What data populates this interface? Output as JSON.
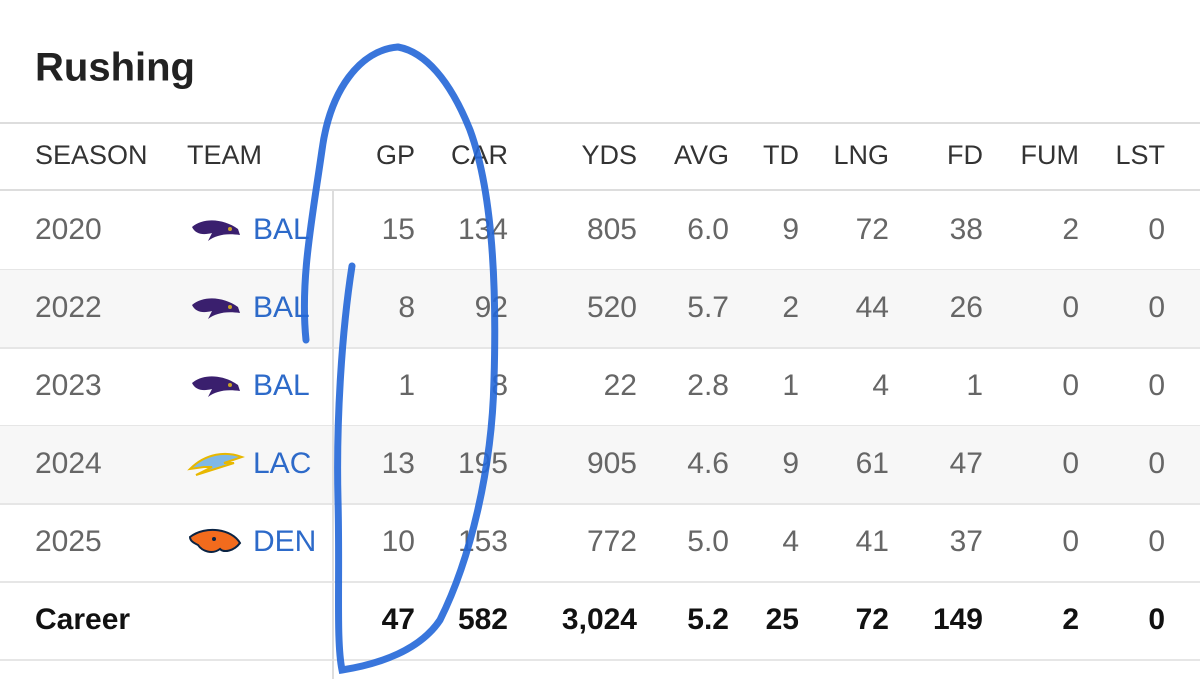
{
  "title": "Rushing",
  "columns": [
    "SEASON",
    "TEAM",
    "GP",
    "CAR",
    "YDS",
    "AVG",
    "TD",
    "LNG",
    "FD",
    "FUM",
    "LST"
  ],
  "rows": [
    {
      "season": "2020",
      "team": "BAL",
      "stats": [
        "15",
        "134",
        "805",
        "6.0",
        "9",
        "72",
        "38",
        "2",
        "0"
      ]
    },
    {
      "season": "2022",
      "team": "BAL",
      "stats": [
        "8",
        "92",
        "520",
        "5.7",
        "2",
        "44",
        "26",
        "0",
        "0"
      ]
    },
    {
      "season": "2023",
      "team": "BAL",
      "stats": [
        "1",
        "8",
        "22",
        "2.8",
        "1",
        "4",
        "1",
        "0",
        "0"
      ]
    },
    {
      "season": "2024",
      "team": "LAC",
      "stats": [
        "13",
        "195",
        "905",
        "4.6",
        "9",
        "61",
        "47",
        "0",
        "0"
      ]
    },
    {
      "season": "2025",
      "team": "DEN",
      "stats": [
        "10",
        "153",
        "772",
        "5.0",
        "4",
        "41",
        "37",
        "0",
        "0"
      ]
    }
  ],
  "career": {
    "label": "Career",
    "stats": [
      "47",
      "582",
      "3,024",
      "5.2",
      "25",
      "72",
      "149",
      "2",
      "0"
    ]
  }
}
